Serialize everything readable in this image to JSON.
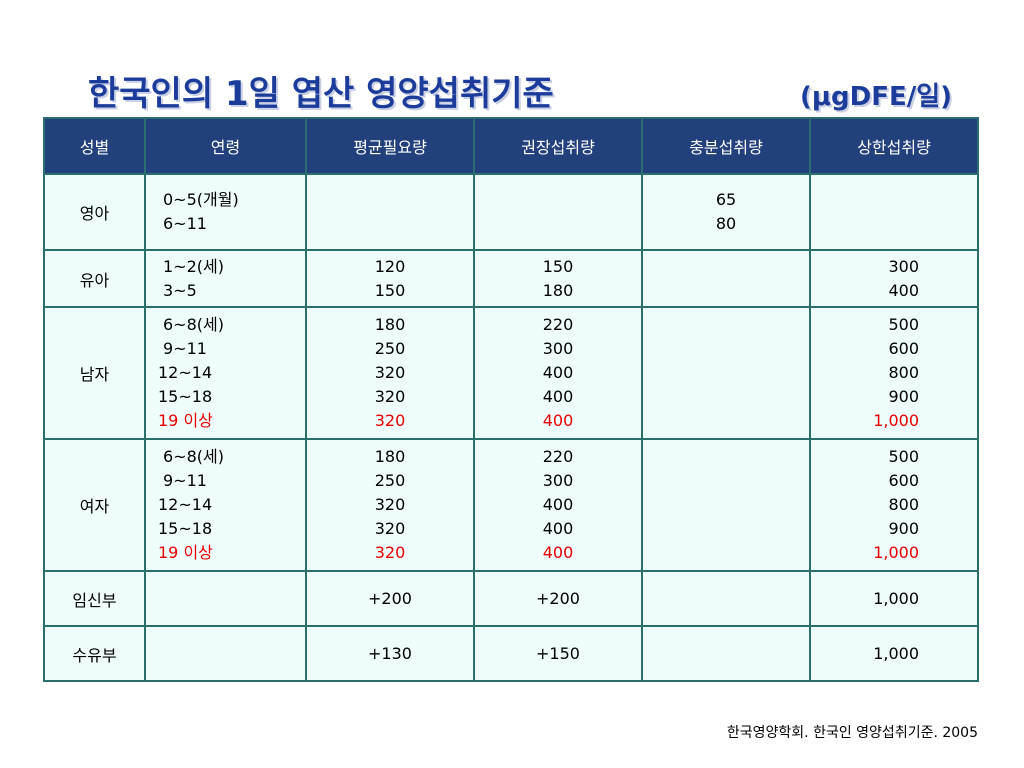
{
  "title": "한국인의 1일 엽산 영양섭취기준",
  "unit": "(μgDFE/일)",
  "headers": [
    "성별",
    "연령",
    "평균필요량",
    "권장섭취량",
    "충분섭취량",
    "상한섭취량"
  ],
  "rows": [
    {
      "group": "영아",
      "ages": [
        "0~5(개월)",
        "6~11"
      ],
      "ear": [],
      "rni": [],
      "ai": [
        "65",
        "80"
      ],
      "ul": []
    },
    {
      "group": "유아",
      "ages": [
        "1~2(세)",
        "3~5"
      ],
      "ear": [
        "120",
        "150"
      ],
      "rni": [
        "150",
        "180"
      ],
      "ai": [],
      "ul": [
        "300",
        "400"
      ]
    },
    {
      "group": "남자",
      "ages": [
        "6~8(세)",
        "9~11",
        "12~14",
        "15~18",
        "19 이상"
      ],
      "ear": [
        "180",
        "250",
        "320",
        "320",
        "320"
      ],
      "rni": [
        "220",
        "300",
        "400",
        "400",
        "400"
      ],
      "ai": [],
      "ul": [
        "500",
        "600",
        "800",
        "900",
        "1,000"
      ]
    },
    {
      "group": "여자",
      "ages": [
        "6~8(세)",
        "9~11",
        "12~14",
        "15~18",
        "19 이상"
      ],
      "ear": [
        "180",
        "250",
        "320",
        "320",
        "320"
      ],
      "rni": [
        "220",
        "300",
        "400",
        "400",
        "400"
      ],
      "ai": [],
      "ul": [
        "500",
        "600",
        "800",
        "900",
        "1,000"
      ]
    },
    {
      "group": "임신부",
      "ages": [],
      "ear": [
        "+200"
      ],
      "rni": [
        "+200"
      ],
      "ai": [],
      "ul": [
        "1,000"
      ]
    },
    {
      "group": "수유부",
      "ages": [],
      "ear": [
        "+130"
      ],
      "rni": [
        "+150"
      ],
      "ai": [],
      "ul": [
        "1,000"
      ]
    }
  ],
  "highlight_color": "#e60000",
  "header_bg": "#21407c",
  "cell_bg": "#eefcfc",
  "source": "한국영양학회. 한국인 영양섭취기준. 2005"
}
